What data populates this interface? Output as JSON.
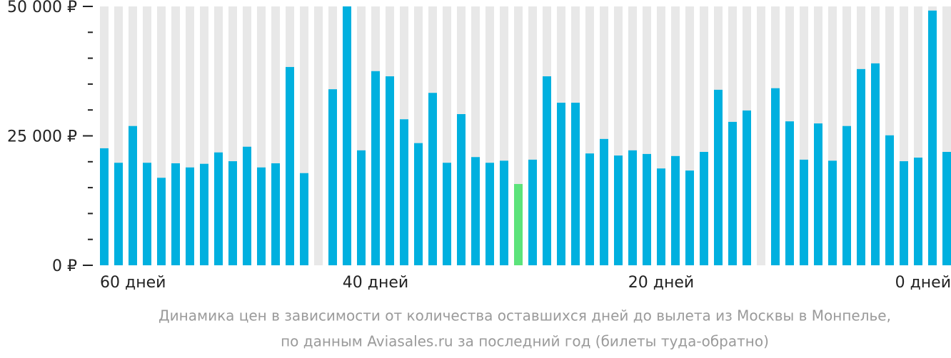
{
  "chart_data": {
    "type": "bar",
    "categories": [
      "60 дней",
      null,
      null,
      null,
      null,
      null,
      null,
      null,
      null,
      null,
      null,
      null,
      null,
      null,
      null,
      null,
      null,
      null,
      null,
      "40 дней",
      null,
      null,
      null,
      null,
      null,
      null,
      null,
      null,
      null,
      null,
      null,
      null,
      null,
      null,
      null,
      null,
      null,
      null,
      null,
      "20 дней",
      null,
      null,
      null,
      null,
      null,
      null,
      null,
      null,
      null,
      null,
      null,
      null,
      null,
      null,
      null,
      null,
      null,
      null,
      null,
      "0 дней"
    ],
    "values": [
      22600,
      19800,
      26900,
      19800,
      16900,
      19700,
      18900,
      19600,
      21800,
      20100,
      22900,
      18900,
      19700,
      38300,
      17800,
      null,
      34000,
      50000,
      22200,
      37500,
      36500,
      28200,
      23600,
      33300,
      19800,
      29200,
      20900,
      19800,
      20200,
      15700,
      20400,
      36500,
      31400,
      31400,
      21600,
      24400,
      21200,
      22200,
      21500,
      18700,
      21100,
      18300,
      21900,
      33900,
      27700,
      29900,
      null,
      34200,
      27800,
      20400,
      27400,
      20200,
      26900,
      37900,
      39000,
      25100,
      20100,
      20800,
      49200,
      21900
    ],
    "color": "#00b0df",
    "highlight": {
      "index": 29,
      "color": "#5ce37a"
    },
    "background_color": "#e8e8e8",
    "ylim": [
      0,
      50000
    ],
    "yticks": [
      {
        "value": 0,
        "label": "0 ₽"
      },
      {
        "value": 25000,
        "label": "25 000 ₽"
      },
      {
        "value": 50000,
        "label": "50 000 ₽"
      }
    ],
    "yticks_minor": [
      5000,
      10000,
      15000,
      20000,
      30000,
      35000,
      40000,
      45000
    ],
    "caption": [
      "Динамика цен в зависимости от количества оставшихся дней до вылета из Москвы в Монпелье,",
      "по данным Aviasales.ru за последний год (билеты туда-обратно)"
    ]
  }
}
